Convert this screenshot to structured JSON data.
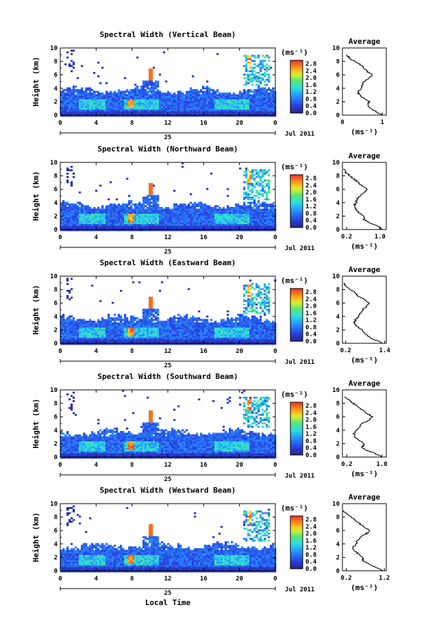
{
  "chart_data": [
    {
      "type": "heatmap",
      "title": "Spectral Width (Vertical Beam)",
      "ylabel": "Height (km)",
      "x_ticks": [
        "0",
        "4",
        "8",
        "12",
        "16",
        "20",
        "0"
      ],
      "y_ticks": [
        "0",
        "2",
        "4",
        "6",
        "8",
        "10"
      ],
      "xlim": [
        0,
        24
      ],
      "ylim": [
        0,
        10
      ],
      "date_day": "25",
      "date_month": "Jul 2011",
      "colorbar": {
        "unit": "(ms⁻¹)",
        "ticks": [
          "0.0",
          "0.4",
          "0.8",
          "1.2",
          "1.6",
          "2.0",
          "2.4",
          "2.8"
        ],
        "range": [
          0,
          3.0
        ]
      },
      "profile": {
        "title": "Average",
        "x_ticks": [
          "0",
          "1"
        ],
        "xlim": [
          0,
          1.1
        ],
        "xlabel": "(ms⁻¹)",
        "y_ticks": [
          "0",
          "2",
          "4",
          "6",
          "8",
          "10"
        ],
        "heights": [
          0,
          0.5,
          1,
          1.5,
          2,
          2.5,
          3,
          3.5,
          4,
          4.5,
          5,
          5.5,
          6,
          6.5,
          7,
          7.5,
          8,
          8.5,
          9
        ],
        "values": [
          1.0,
          0.85,
          0.7,
          0.62,
          0.68,
          0.55,
          0.42,
          0.4,
          0.48,
          0.5,
          0.55,
          0.68,
          0.75,
          0.62,
          0.55,
          0.45,
          0.3,
          0.18,
          0.1
        ]
      }
    },
    {
      "type": "heatmap",
      "title": "Spectral Width (Northward Beam)",
      "ylabel": "Height (km)",
      "x_ticks": [
        "0",
        "4",
        "8",
        "12",
        "16",
        "20",
        "0"
      ],
      "y_ticks": [
        "0",
        "2",
        "4",
        "6",
        "8",
        "10"
      ],
      "xlim": [
        0,
        24
      ],
      "ylim": [
        0,
        10
      ],
      "date_day": "25",
      "date_month": "Jul 2011",
      "colorbar": {
        "unit": "(ms⁻¹)",
        "ticks": [
          "0.0",
          "0.4",
          "0.8",
          "1.2",
          "1.6",
          "2.0",
          "2.4",
          "2.8"
        ],
        "range": [
          0,
          3.0
        ]
      },
      "profile": {
        "title": "Average",
        "x_ticks": [
          "0.2",
          "1.0"
        ],
        "xlim": [
          0.1,
          1.15
        ],
        "xlabel": "(ms⁻¹)",
        "y_ticks": [
          "0",
          "2",
          "4",
          "6",
          "8",
          "10"
        ],
        "heights": [
          0,
          0.5,
          1,
          1.5,
          2,
          2.5,
          3,
          3.5,
          4,
          4.5,
          5,
          5.5,
          6,
          6.5,
          7,
          7.5,
          8,
          8.5,
          9
        ],
        "values": [
          1.05,
          0.95,
          0.75,
          0.62,
          0.6,
          0.5,
          0.42,
          0.38,
          0.42,
          0.45,
          0.52,
          0.62,
          0.7,
          0.58,
          0.48,
          0.38,
          0.28,
          0.18,
          0.12
        ]
      }
    },
    {
      "type": "heatmap",
      "title": "Spectral Width (Eastward Beam)",
      "ylabel": "Height (km)",
      "x_ticks": [
        "0",
        "4",
        "8",
        "12",
        "16",
        "20",
        "0"
      ],
      "y_ticks": [
        "0",
        "2",
        "4",
        "6",
        "8",
        "10"
      ],
      "xlim": [
        0,
        24
      ],
      "ylim": [
        0,
        10
      ],
      "date_day": "25",
      "date_month": "Jul 2011",
      "colorbar": {
        "unit": "(ms⁻¹)",
        "ticks": [
          "0.0",
          "0.4",
          "0.8",
          "1.2",
          "1.6",
          "2.0",
          "2.4",
          "2.8"
        ],
        "range": [
          0,
          3.0
        ]
      },
      "profile": {
        "title": "Average",
        "x_ticks": [
          "0.2",
          "1.4"
        ],
        "xlim": [
          0.1,
          1.45
        ],
        "xlabel": "(ms⁻¹)",
        "y_ticks": [
          "0",
          "2",
          "4",
          "6",
          "8",
          "10"
        ],
        "heights": [
          0,
          0.5,
          1,
          1.5,
          2,
          2.5,
          3,
          3.5,
          4,
          4.5,
          5,
          5.5,
          6,
          6.5,
          7,
          7.5,
          8,
          8.5,
          9
        ],
        "values": [
          1.35,
          1.1,
          0.9,
          0.8,
          0.7,
          0.55,
          0.45,
          0.5,
          0.6,
          0.65,
          0.72,
          0.85,
          0.9,
          0.8,
          0.6,
          0.5,
          0.35,
          0.2,
          0.15
        ]
      }
    },
    {
      "type": "heatmap",
      "title": "Spectral Width (Southward Beam)",
      "ylabel": "Height (km)",
      "x_ticks": [
        "0",
        "4",
        "8",
        "12",
        "16",
        "20",
        "0"
      ],
      "y_ticks": [
        "0",
        "2",
        "4",
        "6",
        "8",
        "10"
      ],
      "xlim": [
        0,
        24
      ],
      "ylim": [
        0,
        10
      ],
      "date_day": "25",
      "date_month": "Jul 2011",
      "colorbar": {
        "unit": "(ms⁻¹)",
        "ticks": [
          "0.0",
          "0.4",
          "0.8",
          "1.2",
          "1.6",
          "2.0",
          "2.4",
          "2.8"
        ],
        "range": [
          0,
          3.0
        ]
      },
      "profile": {
        "title": "Average",
        "x_ticks": [
          "0.2",
          "1.0"
        ],
        "xlim": [
          0.1,
          1.1
        ],
        "xlabel": "(ms⁻¹)",
        "y_ticks": [
          "0",
          "2",
          "4",
          "6",
          "8",
          "10"
        ],
        "heights": [
          0,
          0.5,
          1,
          1.5,
          2,
          2.5,
          3,
          3.5,
          4,
          4.5,
          5,
          5.5,
          6,
          6.5,
          7,
          7.5,
          8,
          8.5,
          9
        ],
        "values": [
          1.0,
          0.85,
          0.65,
          0.55,
          0.6,
          0.48,
          0.38,
          0.35,
          0.42,
          0.48,
          0.55,
          0.7,
          0.8,
          0.65,
          0.55,
          0.45,
          0.35,
          0.25,
          0.15
        ]
      }
    },
    {
      "type": "heatmap",
      "title": "Spectral Width (Westward Beam)",
      "ylabel": "Height (km)",
      "xlabel": "Local Time",
      "x_ticks": [
        "0",
        "4",
        "8",
        "12",
        "16",
        "20",
        "0"
      ],
      "y_ticks": [
        "0",
        "2",
        "4",
        "6",
        "8",
        "10"
      ],
      "xlim": [
        0,
        24
      ],
      "ylim": [
        0,
        10
      ],
      "date_day": "25",
      "date_month": "Jul 2011",
      "colorbar": {
        "unit": "(ms⁻¹)",
        "ticks": [
          "0.0",
          "0.4",
          "0.8",
          "1.2",
          "1.6",
          "2.0",
          "2.4",
          "2.8"
        ],
        "range": [
          0,
          3.0
        ]
      },
      "profile": {
        "title": "Average",
        "x_ticks": [
          "0.2",
          "1.2"
        ],
        "xlim": [
          0.1,
          1.25
        ],
        "xlabel": "(ms⁻¹)",
        "y_ticks": [
          "0",
          "2",
          "4",
          "6",
          "8",
          "10"
        ],
        "heights": [
          0,
          0.5,
          1,
          1.5,
          2,
          2.5,
          3,
          3.5,
          4,
          4.5,
          5,
          5.5,
          6,
          6.5,
          7,
          7.5,
          8,
          8.5,
          9
        ],
        "values": [
          1.15,
          1.0,
          0.8,
          0.65,
          0.62,
          0.52,
          0.42,
          0.38,
          0.45,
          0.5,
          0.58,
          0.72,
          0.82,
          0.68,
          0.55,
          0.45,
          0.32,
          0.2,
          0.12
        ]
      }
    }
  ]
}
